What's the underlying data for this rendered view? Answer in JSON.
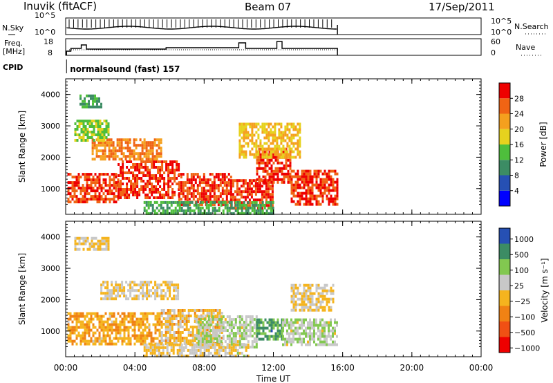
{
  "header": {
    "station": "Inuvik (fitACF)",
    "beam": "Beam 07",
    "date": "17/Sep/2011"
  },
  "noise_panel": {
    "left_label": "N.Sky",
    "right_label": "N.Search",
    "left_ticks": [
      "10^5",
      "10^0"
    ],
    "right_ticks": [
      "10^5",
      "10^0"
    ]
  },
  "freq_panel": {
    "left_label_line1": "Freq.",
    "left_label_line2": "[MHz]",
    "right_label": "Nave",
    "left_ticks": [
      "18",
      "8"
    ],
    "right_ticks": [
      "60",
      "0"
    ]
  },
  "cpid": {
    "label": "CPID",
    "program": "normalsound (fast) 157"
  },
  "colors": {
    "power": [
      "#0000ff",
      "#2650b4",
      "#3c8c64",
      "#4ebe3c",
      "#e6d21e",
      "#f5a01e",
      "#f06414",
      "#ee0000"
    ],
    "velocity": [
      "#ee0000",
      "#f05014",
      "#f08214",
      "#f5b41e",
      "#c8c8c8",
      "#82c850",
      "#3c8c64",
      "#2650b4"
    ]
  },
  "chart_data": [
    {
      "type": "heatmap",
      "name": "power",
      "ylabel": "Slant Range [km]",
      "ylim": [
        180,
        4500
      ],
      "y_ticks": [
        1000,
        2000,
        3000,
        4000
      ],
      "x_ticks": [
        "00:00",
        "04:00",
        "08:00",
        "12:00",
        "16:00",
        "20:00",
        "00:00"
      ],
      "xlim_hours": [
        0,
        24
      ],
      "data_end_hour": 15.7,
      "colorbar": {
        "label": "Power [dB]",
        "ticks": [
          "4",
          "8",
          "12",
          "16",
          "20",
          "24",
          "28"
        ],
        "range": [
          0,
          32
        ]
      },
      "echo_bands": [
        {
          "t0": 0.1,
          "t1": 3.0,
          "r0": 600,
          "r1": 1500,
          "value": 28
        },
        {
          "t0": 3.0,
          "t1": 6.5,
          "r0": 700,
          "r1": 1900,
          "value": 28
        },
        {
          "t0": 6.5,
          "t1": 9.5,
          "r0": 500,
          "r1": 1500,
          "value": 28
        },
        {
          "t0": 9.5,
          "t1": 12.0,
          "r0": 400,
          "r1": 1300,
          "value": 28
        },
        {
          "t0": 11.0,
          "t1": 13.0,
          "r0": 1200,
          "r1": 2300,
          "value": 28
        },
        {
          "t0": 13.0,
          "t1": 15.7,
          "r0": 500,
          "r1": 1600,
          "value": 28
        },
        {
          "t0": 1.5,
          "t1": 5.5,
          "r0": 1900,
          "r1": 2600,
          "value": 24
        },
        {
          "t0": 10.0,
          "t1": 13.5,
          "r0": 2000,
          "r1": 3100,
          "value": 20
        },
        {
          "t0": 0.5,
          "t1": 2.5,
          "r0": 2500,
          "r1": 3200,
          "value": 16
        },
        {
          "t0": 0.8,
          "t1": 2.0,
          "r0": 3600,
          "r1": 4000,
          "value": 12
        },
        {
          "t0": 4.5,
          "t1": 12.0,
          "r0": 200,
          "r1": 600,
          "value": 12
        }
      ]
    },
    {
      "type": "heatmap",
      "name": "velocity",
      "ylabel": "Slant Range [km]",
      "ylim": [
        180,
        4500
      ],
      "y_ticks": [
        1000,
        2000,
        3000,
        4000
      ],
      "x_ticks": [
        "00:00",
        "04:00",
        "08:00",
        "12:00",
        "16:00",
        "20:00",
        "00:00"
      ],
      "xlim_hours": [
        0,
        24
      ],
      "xlabel": "Time UT",
      "data_end_hour": 15.7,
      "colorbar": {
        "label": "Velocity [m s⁻¹]",
        "ticks": [
          "1000",
          "500",
          "100",
          "25",
          "−25",
          "−100",
          "−500",
          "−1000"
        ],
        "range": [
          -1500,
          1500
        ]
      },
      "echo_bands": [
        {
          "t0": 0.1,
          "t1": 5.5,
          "r0": 600,
          "r1": 1600,
          "value": -300
        },
        {
          "t0": 2.0,
          "t1": 6.5,
          "r0": 2000,
          "r1": 2600,
          "value": 0
        },
        {
          "t0": 5.5,
          "t1": 9.0,
          "r0": 600,
          "r1": 1700,
          "value": -150
        },
        {
          "t0": 7.5,
          "t1": 11.0,
          "r0": 500,
          "r1": 1500,
          "value": 300
        },
        {
          "t0": 11.0,
          "t1": 12.5,
          "r0": 700,
          "r1": 1400,
          "value": 800
        },
        {
          "t0": 12.5,
          "t1": 15.7,
          "r0": 600,
          "r1": 1400,
          "value": 300
        },
        {
          "t0": 13.0,
          "t1": 15.5,
          "r0": 1700,
          "r1": 2500,
          "value": 0
        },
        {
          "t0": 0.5,
          "t1": 2.5,
          "r0": 3600,
          "r1": 4000,
          "value": 0
        },
        {
          "t0": 4.5,
          "t1": 10.5,
          "r0": 200,
          "r1": 600,
          "value": 60
        }
      ]
    }
  ]
}
